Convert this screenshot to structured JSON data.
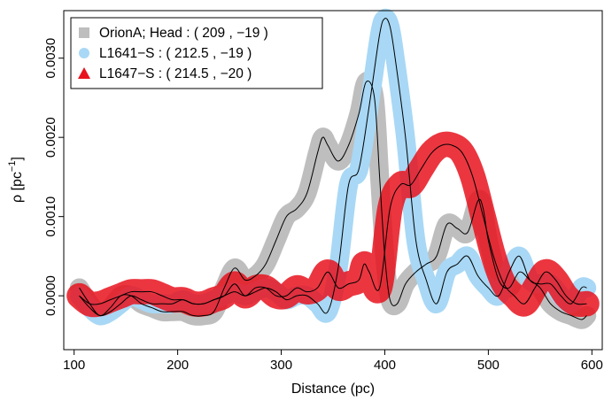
{
  "chart_data": {
    "type": "line",
    "xlabel": "Distance (pc)",
    "ylabel": "ρ [pc⁻¹]",
    "xlim": [
      90,
      610
    ],
    "ylim": [
      -0.00068,
      0.0036
    ],
    "xticks": [
      100,
      200,
      300,
      400,
      500,
      600
    ],
    "yticks": [
      0.0,
      0.001,
      0.002,
      0.003
    ],
    "ytick_labels": [
      "0.0000",
      "0.0010",
      "0.0020",
      "0.0030"
    ],
    "legend_position": "top-left",
    "series": [
      {
        "name": "OrionA; Head : ( 209 , −19 )",
        "color": "#bebebe",
        "marker": "square",
        "band_width": 0.00012,
        "x": [
          105,
          115,
          125,
          135,
          145,
          155,
          165,
          175,
          185,
          195,
          205,
          215,
          225,
          235,
          245,
          255,
          265,
          275,
          285,
          295,
          305,
          315,
          325,
          335,
          340,
          345,
          355,
          365,
          375,
          382,
          390,
          395,
          400,
          405,
          412,
          420,
          430,
          440,
          450,
          460,
          470,
          480,
          490,
          495,
          500,
          510,
          520,
          530,
          540,
          550,
          560,
          570,
          580,
          590,
          595
        ],
        "y": [
          0.0001,
          -0.0001,
          -0.00025,
          -0.00015,
          0.0,
          0.0,
          -0.0001,
          -0.00015,
          -0.0002,
          -0.0002,
          -0.0002,
          -0.00025,
          -0.00025,
          -0.0002,
          0.0001,
          0.00035,
          0.0002,
          0.00025,
          0.0004,
          0.0007,
          0.001,
          0.0011,
          0.0013,
          0.0018,
          0.002,
          0.0019,
          0.0017,
          0.0019,
          0.0023,
          0.0027,
          0.0025,
          0.0015,
          0.0005,
          -5e-05,
          -0.0001,
          0.00015,
          0.0003,
          0.0004,
          0.0005,
          0.0009,
          0.00085,
          0.0008,
          0.0012,
          0.0011,
          0.0007,
          0.0002,
          0.0001,
          0.0003,
          0.0002,
          0.0001,
          -0.0001,
          -0.0002,
          -0.00025,
          -0.0003,
          -0.00025
        ]
      },
      {
        "name": "L1641−S : ( 212.5 , −19 )",
        "color": "#a8d8f5",
        "marker": "circle",
        "band_width": 0.00012,
        "x": [
          105,
          115,
          125,
          135,
          145,
          155,
          165,
          175,
          185,
          195,
          205,
          215,
          225,
          235,
          245,
          255,
          265,
          275,
          285,
          295,
          305,
          315,
          325,
          335,
          345,
          355,
          365,
          375,
          385,
          395,
          400,
          405,
          410,
          420,
          430,
          440,
          450,
          460,
          470,
          480,
          490,
          500,
          510,
          520,
          530,
          540,
          550,
          560,
          570,
          580,
          590,
          595
        ],
        "y": [
          0.0,
          -0.00015,
          -0.00025,
          -0.0002,
          -0.0001,
          0.0,
          -5e-05,
          -0.0001,
          -0.0001,
          -0.0001,
          -5e-05,
          -0.0001,
          -0.0001,
          -5e-05,
          0.0,
          5e-05,
          0.0,
          5e-05,
          0.0001,
          5e-05,
          -5e-05,
          0.0,
          0.0,
          -0.0001,
          -0.0002,
          0.00035,
          0.0014,
          0.0016,
          0.0024,
          0.0033,
          0.0035,
          0.0034,
          0.003,
          0.002,
          0.0007,
          0.0002,
          -0.0001,
          0.0003,
          0.0004,
          0.0005,
          0.00025,
          0.0001,
          0.0,
          0.0003,
          0.0005,
          0.0002,
          0.00015,
          0.00015,
          0.0,
          -0.0001,
          0.0001,
          0.0001
        ]
      },
      {
        "name": "L1647−S : ( 214.5 , −20 )",
        "color": "#e8131e",
        "marker": "triangle",
        "band_width": 0.00016,
        "x": [
          105,
          115,
          125,
          135,
          145,
          155,
          165,
          175,
          185,
          195,
          205,
          215,
          225,
          235,
          245,
          255,
          265,
          275,
          285,
          295,
          305,
          315,
          325,
          335,
          345,
          355,
          365,
          375,
          380,
          385,
          395,
          405,
          415,
          425,
          435,
          445,
          455,
          465,
          475,
          485,
          495,
          505,
          515,
          525,
          535,
          545,
          555,
          565,
          575,
          585,
          595
        ],
        "y": [
          0.0,
          -0.0001,
          -0.0001,
          -5e-05,
          0.0,
          5e-05,
          5e-05,
          5e-05,
          0.0,
          -5e-05,
          -5e-05,
          -0.0001,
          -0.0001,
          -5e-05,
          0.0,
          0.00015,
          0.0,
          0.0001,
          0.0001,
          0.0,
          0.0,
          0.0001,
          5e-05,
          0.0001,
          0.0003,
          0.0001,
          0.00015,
          0.0002,
          0.0004,
          0.0003,
          0.0001,
          0.0011,
          0.0014,
          0.0014,
          0.0016,
          0.0018,
          0.0019,
          0.0019,
          0.0018,
          0.0015,
          0.001,
          0.0005,
          0.00015,
          0.0,
          -0.0001,
          0.0001,
          0.0003,
          0.0002,
          0.0,
          -0.0001,
          -0.0001
        ]
      }
    ],
    "center_line_color": "#000000"
  }
}
